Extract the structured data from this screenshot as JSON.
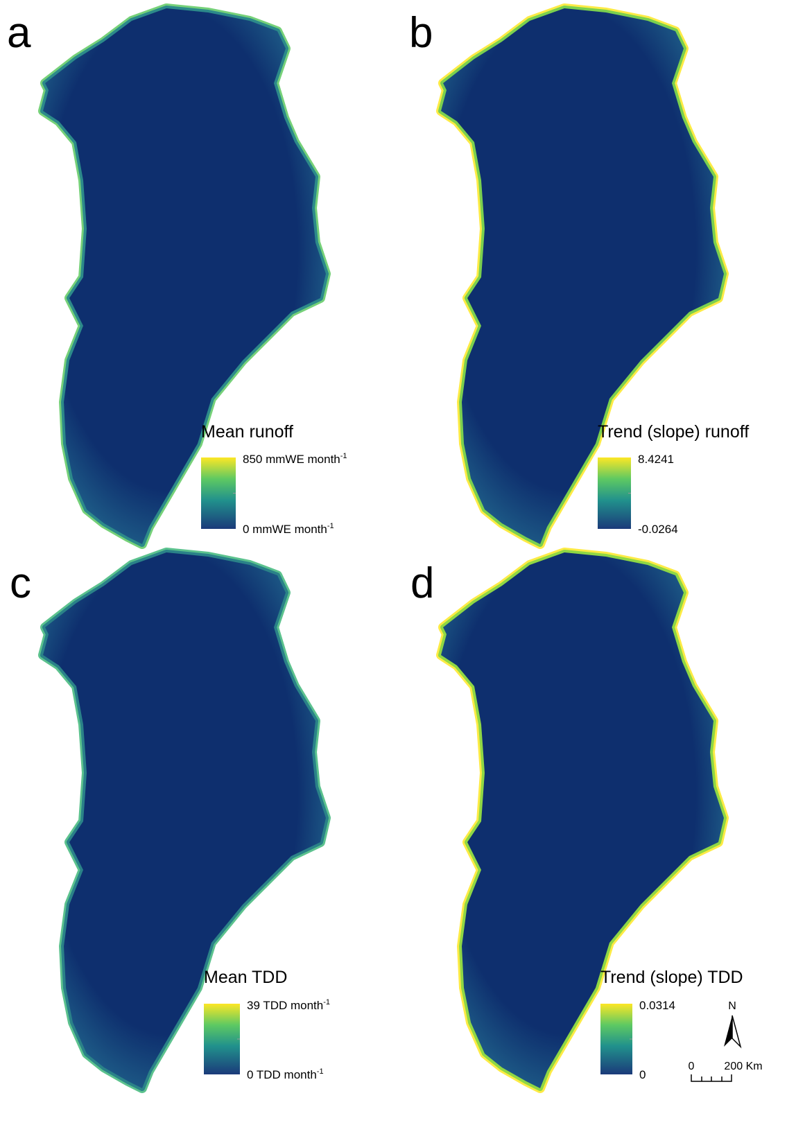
{
  "panels": [
    {
      "label": "a",
      "legend": {
        "title": "Mean runoff",
        "max": {
          "text": "850 mmWE month",
          "sup": "-1"
        },
        "min": {
          "text": "0 mmWE month",
          "sup": "-1"
        }
      }
    },
    {
      "label": "b",
      "legend": {
        "title": "Trend (slope) runoff",
        "max": {
          "text": "8.4241"
        },
        "min": {
          "text": "-0.0264"
        }
      }
    },
    {
      "label": "c",
      "legend": {
        "title": "Mean TDD",
        "max": {
          "text": "39 TDD month",
          "sup": "-1"
        },
        "min": {
          "text": "0 TDD month",
          "sup": "-1"
        }
      }
    },
    {
      "label": "d",
      "legend": {
        "title": "Trend (slope) TDD",
        "max": {
          "text": "0.0314"
        },
        "min": {
          "text": "0"
        }
      }
    }
  ],
  "north_arrow": "N",
  "scale_bar": {
    "start": "0",
    "end": "200 Km"
  }
}
